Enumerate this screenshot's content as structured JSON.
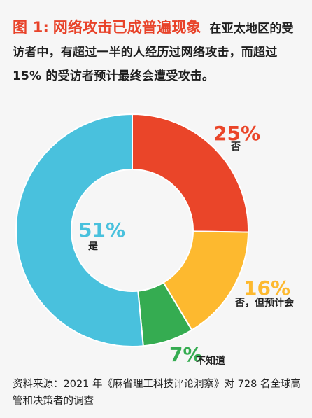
{
  "header": {
    "figure_label": "图 1:",
    "title": "网络攻击已成普遍现象",
    "description": "在亚太地区的受访者中，有超过一半的人经历过网络攻击，而超过 15% 的受访者预计最终会遭受攻击。"
  },
  "chart_data": {
    "type": "pie",
    "variant": "donut",
    "slices": [
      {
        "value": 25,
        "label_value": "25%",
        "label": "否",
        "color": "#ea4529"
      },
      {
        "value": 16,
        "label_value": "16%",
        "label": "否，但预计会",
        "color": "#fdb92f"
      },
      {
        "value": 7,
        "label_value": "7%",
        "label": "不知道",
        "color": "#35ac51"
      },
      {
        "value": 51,
        "label_value": "51%",
        "label": "是",
        "color": "#49c1dd"
      }
    ]
  },
  "footer": {
    "source": "资料来源：2021 年《麻省理工科技评论洞察》对 728 名全球高管和决策者的调查"
  }
}
